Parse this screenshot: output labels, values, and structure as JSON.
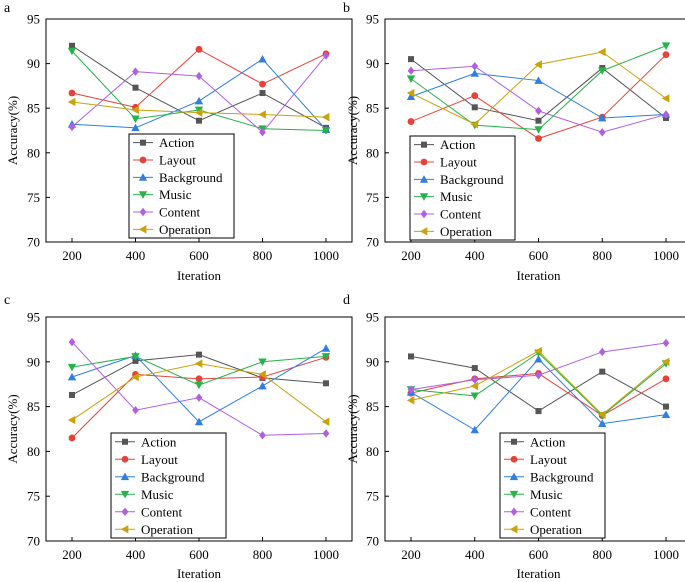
{
  "chart_data": [
    {
      "type": "line",
      "panel": "a",
      "xlabel": "Iteration",
      "ylabel": "Accuracy(%)",
      "x": [
        200,
        400,
        600,
        800,
        1000
      ],
      "xticks": [
        "200",
        "400",
        "600",
        "800",
        "1000"
      ],
      "ylim": [
        70,
        95
      ],
      "yticks": [
        "70",
        "75",
        "80",
        "85",
        "90",
        "95"
      ],
      "legend_position": "bottom-center",
      "series": [
        {
          "name": "Action",
          "color": "#555555",
          "marker": "square",
          "values": [
            92.0,
            87.3,
            83.6,
            86.7,
            82.8
          ]
        },
        {
          "name": "Layout",
          "color": "#e8413a",
          "marker": "circle",
          "values": [
            86.7,
            85.1,
            91.6,
            87.7,
            91.1
          ]
        },
        {
          "name": "Background",
          "color": "#2f7fe0",
          "marker": "triangle-up",
          "values": [
            83.2,
            82.8,
            85.8,
            90.5,
            82.6
          ]
        },
        {
          "name": "Music",
          "color": "#27b24a",
          "marker": "triangle-down",
          "values": [
            91.4,
            83.8,
            84.8,
            82.7,
            82.5
          ]
        },
        {
          "name": "Content",
          "color": "#b05fe0",
          "marker": "diamond",
          "values": [
            82.9,
            89.1,
            88.6,
            82.3,
            90.9
          ]
        },
        {
          "name": "Operation",
          "color": "#c9a20c",
          "marker": "triangle-left",
          "values": [
            85.7,
            84.8,
            84.5,
            84.3,
            84.0
          ]
        }
      ]
    },
    {
      "type": "line",
      "panel": "b",
      "xlabel": "Iteration",
      "ylabel": "Accuracy(%)",
      "x": [
        200,
        400,
        600,
        800,
        1000
      ],
      "xticks": [
        "200",
        "400",
        "600",
        "800",
        "1000"
      ],
      "ylim": [
        70,
        95
      ],
      "yticks": [
        "70",
        "75",
        "80",
        "85",
        "90",
        "95"
      ],
      "legend_position": "bottom-center",
      "series": [
        {
          "name": "Action",
          "color": "#555555",
          "marker": "square",
          "values": [
            90.5,
            85.1,
            83.6,
            89.5,
            83.9
          ]
        },
        {
          "name": "Layout",
          "color": "#e8413a",
          "marker": "circle",
          "values": [
            83.5,
            86.4,
            81.6,
            84.0,
            91.0
          ]
        },
        {
          "name": "Background",
          "color": "#2f7fe0",
          "marker": "triangle-up",
          "values": [
            86.3,
            88.9,
            88.1,
            83.9,
            84.3
          ]
        },
        {
          "name": "Music",
          "color": "#27b24a",
          "marker": "triangle-down",
          "values": [
            88.3,
            83.1,
            82.6,
            89.2,
            92.0
          ]
        },
        {
          "name": "Content",
          "color": "#b05fe0",
          "marker": "diamond",
          "values": [
            89.2,
            89.7,
            84.7,
            82.3,
            84.3
          ]
        },
        {
          "name": "Operation",
          "color": "#c9a20c",
          "marker": "triangle-left",
          "values": [
            86.7,
            83.2,
            89.9,
            91.3,
            86.1
          ]
        }
      ]
    },
    {
      "type": "line",
      "panel": "c",
      "xlabel": "Iteration",
      "ylabel": "Accuracy(%)",
      "x": [
        200,
        400,
        600,
        800,
        1000
      ],
      "xticks": [
        "200",
        "400",
        "600",
        "800",
        "1000"
      ],
      "ylim": [
        70,
        95
      ],
      "yticks": [
        "70",
        "75",
        "80",
        "85",
        "90",
        "95"
      ],
      "legend_position": "bottom-center",
      "series": [
        {
          "name": "Action",
          "color": "#555555",
          "marker": "square",
          "values": [
            86.3,
            90.1,
            90.8,
            88.2,
            87.6
          ]
        },
        {
          "name": "Layout",
          "color": "#e8413a",
          "marker": "circle",
          "values": [
            81.5,
            88.6,
            88.1,
            88.3,
            90.5
          ]
        },
        {
          "name": "Background",
          "color": "#2f7fe0",
          "marker": "triangle-up",
          "values": [
            88.3,
            90.7,
            83.3,
            87.3,
            91.5
          ]
        },
        {
          "name": "Music",
          "color": "#27b24a",
          "marker": "triangle-down",
          "values": [
            89.4,
            90.6,
            87.4,
            90.0,
            90.6
          ]
        },
        {
          "name": "Content",
          "color": "#b05fe0",
          "marker": "diamond",
          "values": [
            92.2,
            84.6,
            86.0,
            81.8,
            82.0
          ]
        },
        {
          "name": "Operation",
          "color": "#c9a20c",
          "marker": "triangle-left",
          "values": [
            83.5,
            88.3,
            89.8,
            88.6,
            83.3
          ]
        }
      ]
    },
    {
      "type": "line",
      "panel": "d",
      "xlabel": "Iteration",
      "ylabel": "Accuracy(%)",
      "x": [
        200,
        400,
        600,
        800,
        1000
      ],
      "xticks": [
        "200",
        "400",
        "600",
        "800",
        "1000"
      ],
      "ylim": [
        70,
        95
      ],
      "yticks": [
        "70",
        "75",
        "80",
        "85",
        "90",
        "95"
      ],
      "legend_position": "bottom-center",
      "series": [
        {
          "name": "Action",
          "color": "#555555",
          "marker": "square",
          "values": [
            90.6,
            89.3,
            84.5,
            88.9,
            85.0
          ]
        },
        {
          "name": "Layout",
          "color": "#e8413a",
          "marker": "circle",
          "values": [
            86.5,
            88.1,
            88.7,
            84.0,
            88.1
          ]
        },
        {
          "name": "Background",
          "color": "#2f7fe0",
          "marker": "triangle-up",
          "values": [
            86.6,
            82.4,
            90.3,
            83.1,
            84.1
          ]
        },
        {
          "name": "Music",
          "color": "#27b24a",
          "marker": "triangle-down",
          "values": [
            86.9,
            86.2,
            91.0,
            84.0,
            89.8
          ]
        },
        {
          "name": "Content",
          "color": "#b05fe0",
          "marker": "diamond",
          "values": [
            86.9,
            88.0,
            88.5,
            91.1,
            92.1
          ]
        },
        {
          "name": "Operation",
          "color": "#c9a20c",
          "marker": "triangle-left",
          "values": [
            85.7,
            87.3,
            91.2,
            84.1,
            90.0
          ]
        }
      ]
    }
  ]
}
